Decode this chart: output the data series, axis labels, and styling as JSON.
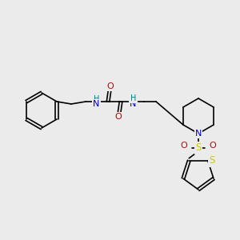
{
  "background_color": "#ebebeb",
  "figsize": [
    3.0,
    3.0
  ],
  "dpi": 100,
  "colors": {
    "bond": "#000000",
    "N": "#0000cc",
    "O": "#cc0000",
    "S": "#cccc00",
    "H_label": "#008080",
    "C": "#000000"
  },
  "font_size": 7.5
}
